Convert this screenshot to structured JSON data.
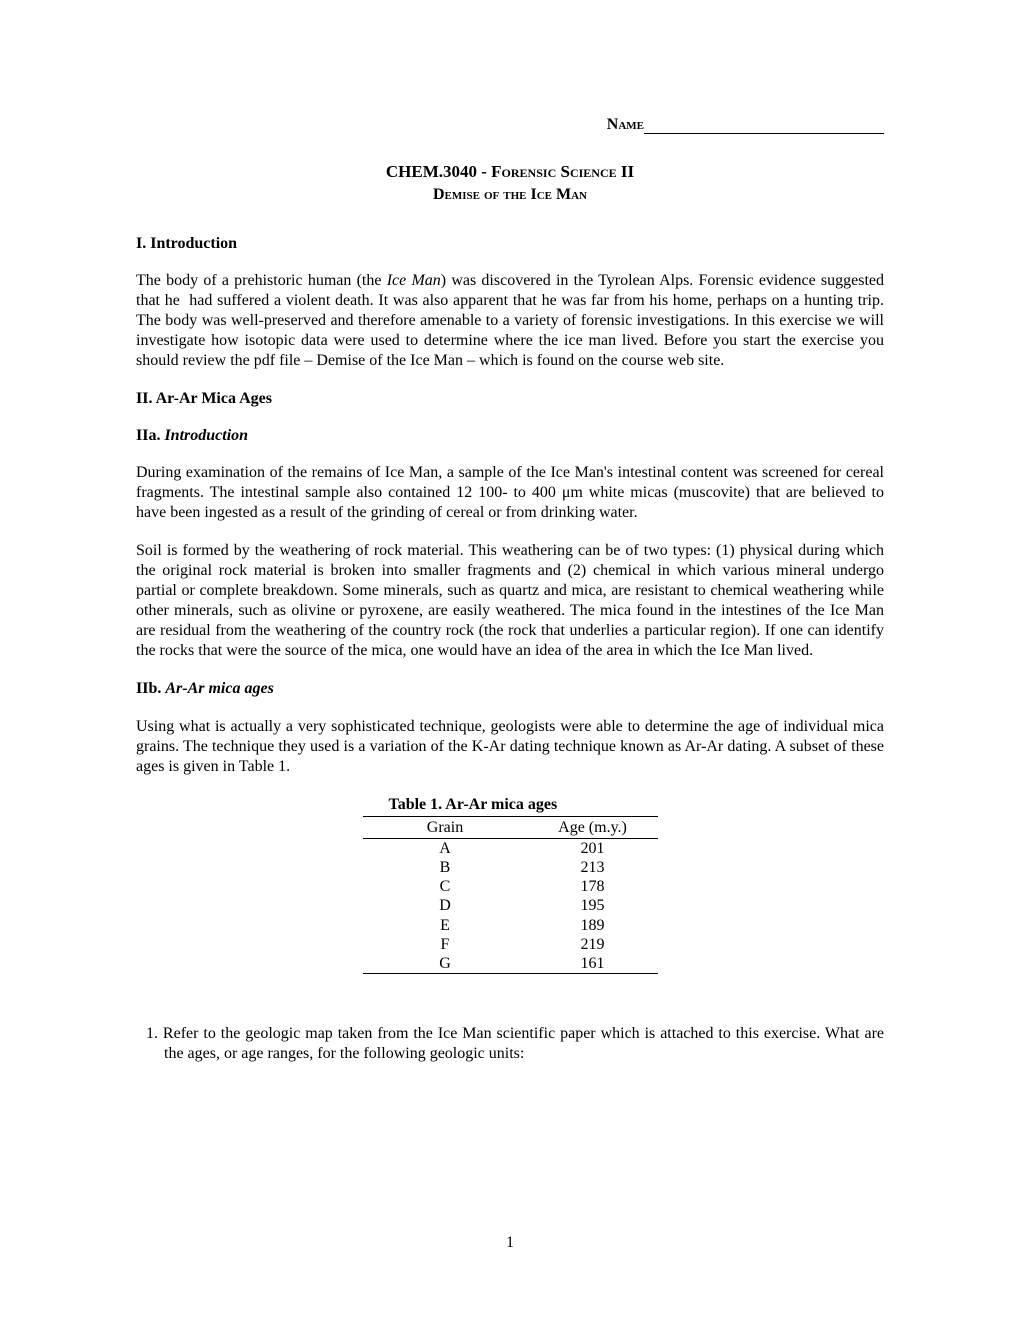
{
  "header": {
    "name_label": "Name"
  },
  "titles": {
    "course": "CHEM.3040 - Forensic Science II",
    "subtitle": "Demise of the Ice Man"
  },
  "section1": {
    "heading": "I. Introduction",
    "para": "The body of a prehistoric human (the Ice Man) was discovered in the Tyrolean Alps. Forensic evidence suggested that he  had suffered a violent death. It was also apparent that he was far from his home, perhaps on a hunting trip. The body was well-preserved and therefore amenable to a variety of forensic investigations. In this exercise we will investigate how isotopic data were used to determine where the ice man lived. Before you start the exercise you should review the pdf file – Demise of the Ice Man – which is found on the course web site."
  },
  "section2": {
    "heading": "II. Ar-Ar Mica Ages",
    "subA": {
      "label": "IIa. ",
      "title": "Introduction",
      "para1": "During examination of the remains of Ice Man, a sample of the Ice Man's intestinal content was screened for cereal fragments. The intestinal sample also contained 12 100- to 400 μm white micas (muscovite) that are believed to have been ingested as a result of the grinding of cereal or from drinking water.",
      "para2": "Soil is formed by the weathering of rock material. This weathering can be of two types: (1) physical during which the original rock material is broken into smaller fragments and (2) chemical in which various mineral undergo partial or complete breakdown. Some minerals, such as quartz and mica, are resistant to chemical weathering while other minerals, such as olivine or pyroxene, are easily weathered. The mica found in the intestines of the Ice Man are residual from the weathering of the country rock (the rock that underlies a particular region). If one can identify the rocks that were the source of the mica, one would have an idea of the area in which the Ice Man lived."
    },
    "subB": {
      "label": "IIb. ",
      "title": "Ar-Ar mica ages",
      "para": "Using what is actually a very sophisticated technique, geologists were able to determine the age of individual mica grains. The technique they used is a variation of the K-Ar dating technique known as Ar-Ar dating. A subset of these ages is given in Table 1."
    }
  },
  "table": {
    "title": "Table 1. Ar-Ar mica ages",
    "col1": "Grain",
    "col2": "Age (m.y.)",
    "rows": [
      {
        "grain": "A",
        "age": "201"
      },
      {
        "grain": "B",
        "age": "213"
      },
      {
        "grain": "C",
        "age": "178"
      },
      {
        "grain": "D",
        "age": "195"
      },
      {
        "grain": "E",
        "age": "189"
      },
      {
        "grain": "F",
        "age": "219"
      },
      {
        "grain": "G",
        "age": "161"
      }
    ]
  },
  "question1": {
    "text": "1. Refer to the geologic map taken from the Ice Man scientific paper which is attached to this exercise. What are the ages, or age ranges, for the following geologic units:"
  },
  "page_number": "1"
}
